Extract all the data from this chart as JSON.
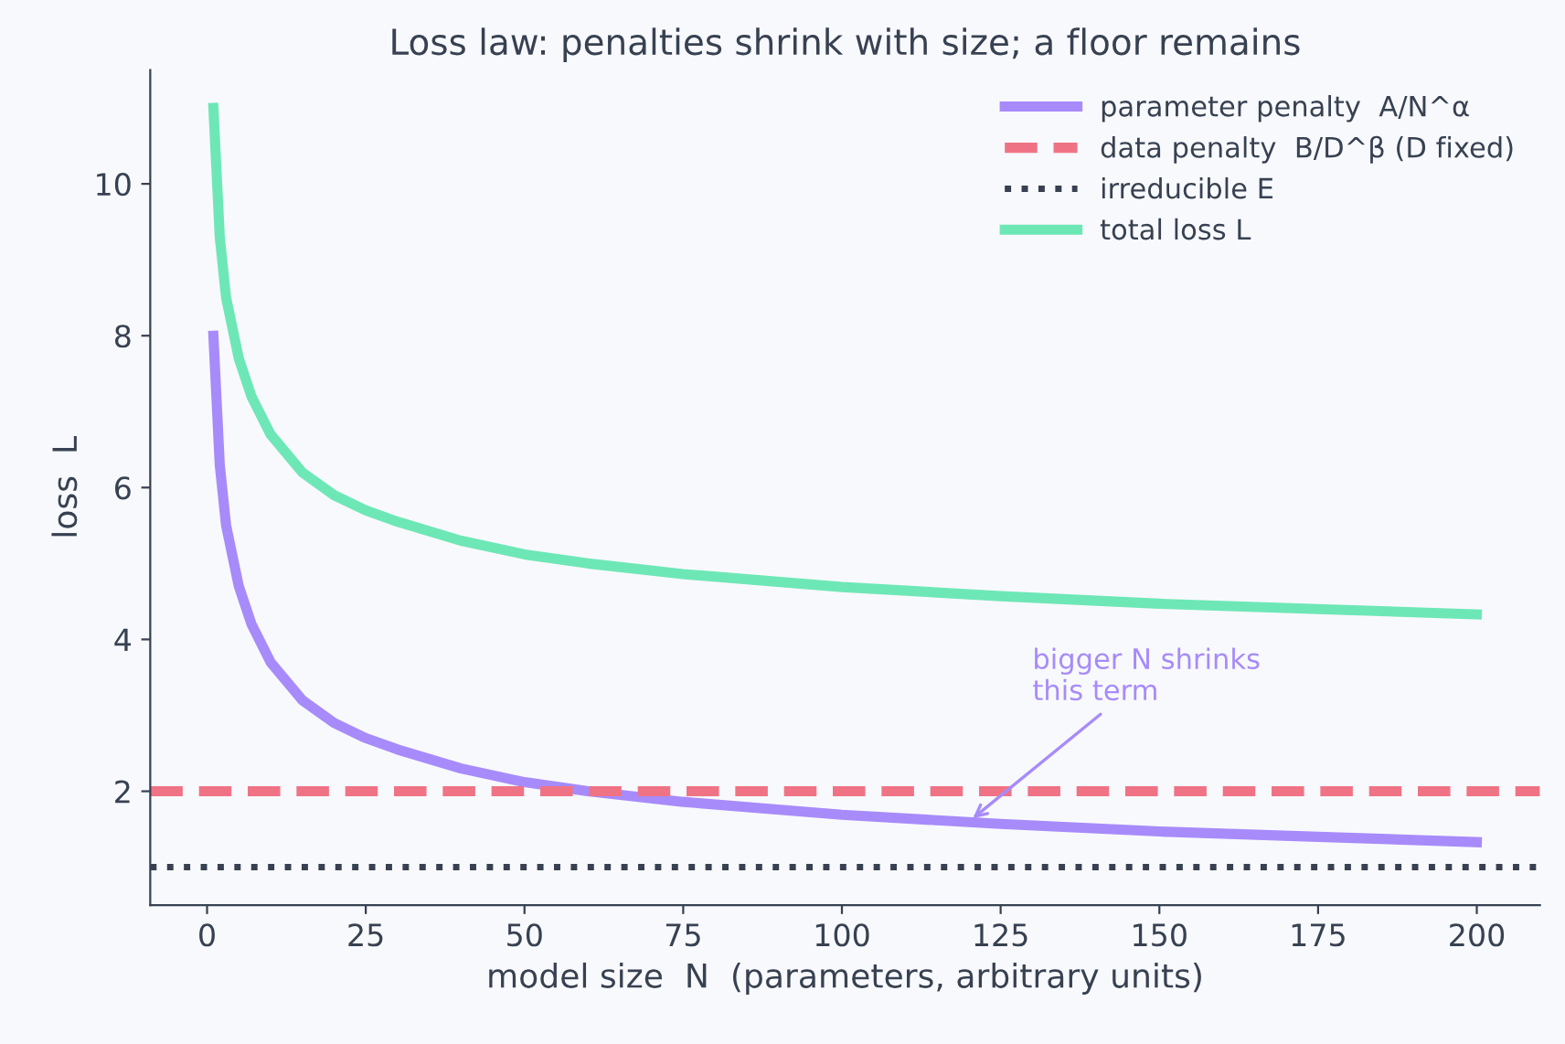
{
  "chart_data": {
    "type": "line",
    "title": "Loss law: penalties shrink with size; a floor remains",
    "xlabel": "model size  N  (parameters, arbitrary units)",
    "ylabel": "loss  L",
    "x": [
      1,
      2,
      3,
      5,
      7,
      10,
      15,
      20,
      25,
      30,
      40,
      50,
      60,
      75,
      100,
      125,
      150,
      175,
      200
    ],
    "series": [
      {
        "name": "parameter penalty  A/N^α",
        "color": "#a78bfa",
        "values": [
          8.0,
          6.3,
          5.5,
          4.7,
          4.2,
          3.7,
          3.2,
          2.9,
          2.7,
          2.55,
          2.3,
          2.12,
          2.0,
          1.86,
          1.69,
          1.57,
          1.47,
          1.4,
          1.33
        ]
      },
      {
        "name": "total loss L",
        "color": "#6ee7b7",
        "values": [
          11.0,
          9.3,
          8.5,
          7.7,
          7.2,
          6.7,
          6.2,
          5.9,
          5.7,
          5.55,
          5.3,
          5.12,
          5.0,
          4.86,
          4.69,
          4.57,
          4.47,
          4.4,
          4.33
        ]
      }
    ],
    "ref_lines": [
      {
        "axis": "y",
        "value": 2,
        "label": "data penalty  B/D^β (D fixed)",
        "color": "#f07385",
        "line_style": "dashed"
      },
      {
        "axis": "y",
        "value": 1,
        "label": "irreducible E",
        "color": "#374151",
        "line_style": "dotted"
      }
    ],
    "annotations": [
      {
        "text": "bigger N shrinks\nthis term",
        "x": 120,
        "y": 1.6
      }
    ],
    "xlim": [
      -8.95,
      209.95
    ],
    "ylim": [
      0.5,
      11.5
    ],
    "xticks": [
      0,
      25,
      50,
      75,
      100,
      125,
      150,
      175,
      200
    ],
    "yticks": [
      2,
      4,
      6,
      8,
      10
    ],
    "legend": "top right",
    "grid": false,
    "marker": "none",
    "line_style": "solid"
  }
}
